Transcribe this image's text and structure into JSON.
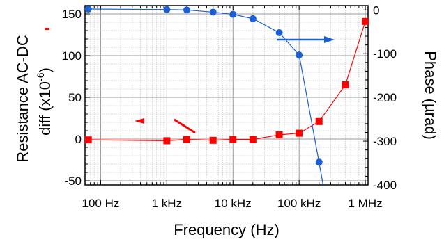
{
  "chart_data": {
    "type": "line",
    "xlabel": "Frequency (Hz)",
    "ylabel_left": "Resistance AC-DC diff (x10⁻⁶)",
    "ylabel_left_line1": "Resistance AC-DC",
    "ylabel_left_line2a": "diff (x10",
    "ylabel_left_exp": "-6",
    "ylabel_left_line2b": ")",
    "ylabel_right": "Phase (µrad)",
    "x_scale": "log",
    "xlim": [
      58,
      1100000
    ],
    "ylim_left": [
      -55,
      160
    ],
    "ylim_right": [
      -400,
      10
    ],
    "grid": true,
    "x_ticks": [
      {
        "value": 100,
        "label": "100  Hz"
      },
      {
        "value": 1000,
        "label": "1 kHz"
      },
      {
        "value": 10000,
        "label": "10 kHz"
      },
      {
        "value": 100000,
        "label": "100 kHz"
      },
      {
        "value": 1000000,
        "label": "1 MHz"
      }
    ],
    "y_left_ticks": [
      {
        "value": 150,
        "label": "150"
      },
      {
        "value": 100,
        "label": "100"
      },
      {
        "value": 50,
        "label": "50"
      },
      {
        "value": 0,
        "label": "0"
      },
      {
        "value": -50,
        "label": "-50"
      }
    ],
    "y_right_ticks": [
      {
        "value": 0,
        "label": "0"
      },
      {
        "value": -100,
        "label": "-100"
      },
      {
        "value": -200,
        "label": "-200"
      },
      {
        "value": -300,
        "label": "-300"
      },
      {
        "value": -400,
        "label": "-400"
      }
    ],
    "series": [
      {
        "axis": "left",
        "color": "#ff0000",
        "marker": "square",
        "x": [
          65,
          1000,
          2000,
          5000,
          10000,
          20000,
          50000,
          100000,
          200000,
          500000,
          1000000
        ],
        "y": [
          -1,
          -2,
          -0.5,
          -1.5,
          -0.5,
          -0.5,
          5,
          7,
          21,
          65,
          141
        ]
      },
      {
        "axis": "right",
        "color": "#0055dd",
        "marker": "circle",
        "x": [
          65,
          1000,
          2000,
          5000,
          10000,
          20000,
          50000,
          100000,
          200000
        ],
        "y": [
          2,
          1,
          0,
          -5,
          -10,
          -20,
          -52,
          -103,
          -348
        ],
        "line_extends_to": {
          "x": 230000,
          "y": -405
        }
      }
    ],
    "annotations": [
      {
        "type": "arrow",
        "direction": "left",
        "color": "#ff0000",
        "meaning": "left axis"
      },
      {
        "type": "arrow",
        "direction": "right",
        "color": "#0055dd",
        "meaning": "right axis"
      }
    ]
  }
}
